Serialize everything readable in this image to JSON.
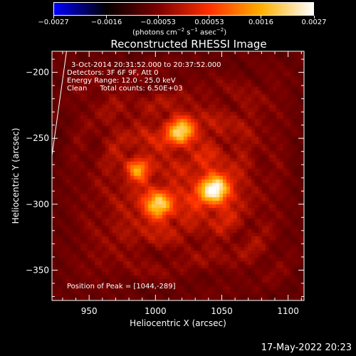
{
  "chart_data": {
    "type": "heatmap",
    "title": "Reconstructed RHESSI Image",
    "xlabel": "Heliocentric X (arcsec)",
    "ylabel": "Heliocentric Y (arcsec)",
    "xlim": [
      922,
      1112
    ],
    "ylim": [
      -373,
      -184
    ],
    "x_ticks": [
      950,
      1000,
      1050,
      1100
    ],
    "y_ticks": [
      -200,
      -250,
      -300,
      -350
    ],
    "x_tick_labels": [
      "950",
      "1000",
      "1050",
      "1100"
    ],
    "y_tick_labels": [
      "−200",
      "−250",
      "−300",
      "−350"
    ],
    "colorbar": {
      "range": [
        -0.0027,
        0.0027
      ],
      "ticks": [
        -0.0027,
        -0.0016,
        -0.00053,
        0.00053,
        0.0016,
        0.0027
      ],
      "tick_labels": [
        "−0.0027",
        "−0.0016",
        "−0.00053",
        "0.00053",
        "0.0016",
        "0.0027"
      ],
      "colors": [
        "#0000ff",
        "#000000",
        "#7a0000",
        "#ff3000",
        "#ffb000",
        "#ffffff"
      ]
    },
    "sources": [
      {
        "x": 1044,
        "y": -289,
        "intensity": 1.0,
        "sigma": 9
      },
      {
        "x": 1019,
        "y": -244,
        "intensity": 0.82,
        "sigma": 8
      },
      {
        "x": 1003,
        "y": -301,
        "intensity": 0.8,
        "sigma": 8
      },
      {
        "x": 986,
        "y": -273,
        "intensity": 0.6,
        "sigma": 6
      }
    ],
    "limb_curve": [
      [
        922,
        -263
      ],
      [
        933,
        -184
      ]
    ],
    "grid": false
  },
  "colorbar_units": {
    "base": "(photons cm",
    "exp1": "−2",
    "s": " s",
    "exp2": "−1",
    "asec": " asec",
    "exp3": "−2",
    "close": ")"
  },
  "annotations": {
    "time_range": "3-Oct-2014 20:31:52.000 to 20:37:52.000",
    "detectors": "Detectors: 3F 6F 9F, Att 0",
    "energy": "Energy Range: 12.0 - 25.0 keV",
    "clean": "Clean",
    "counts": "Total counts: 6.50E+03",
    "peak": "Position of Peak = [1044,-289]"
  },
  "footer_date": "17-May-2022 20:23"
}
